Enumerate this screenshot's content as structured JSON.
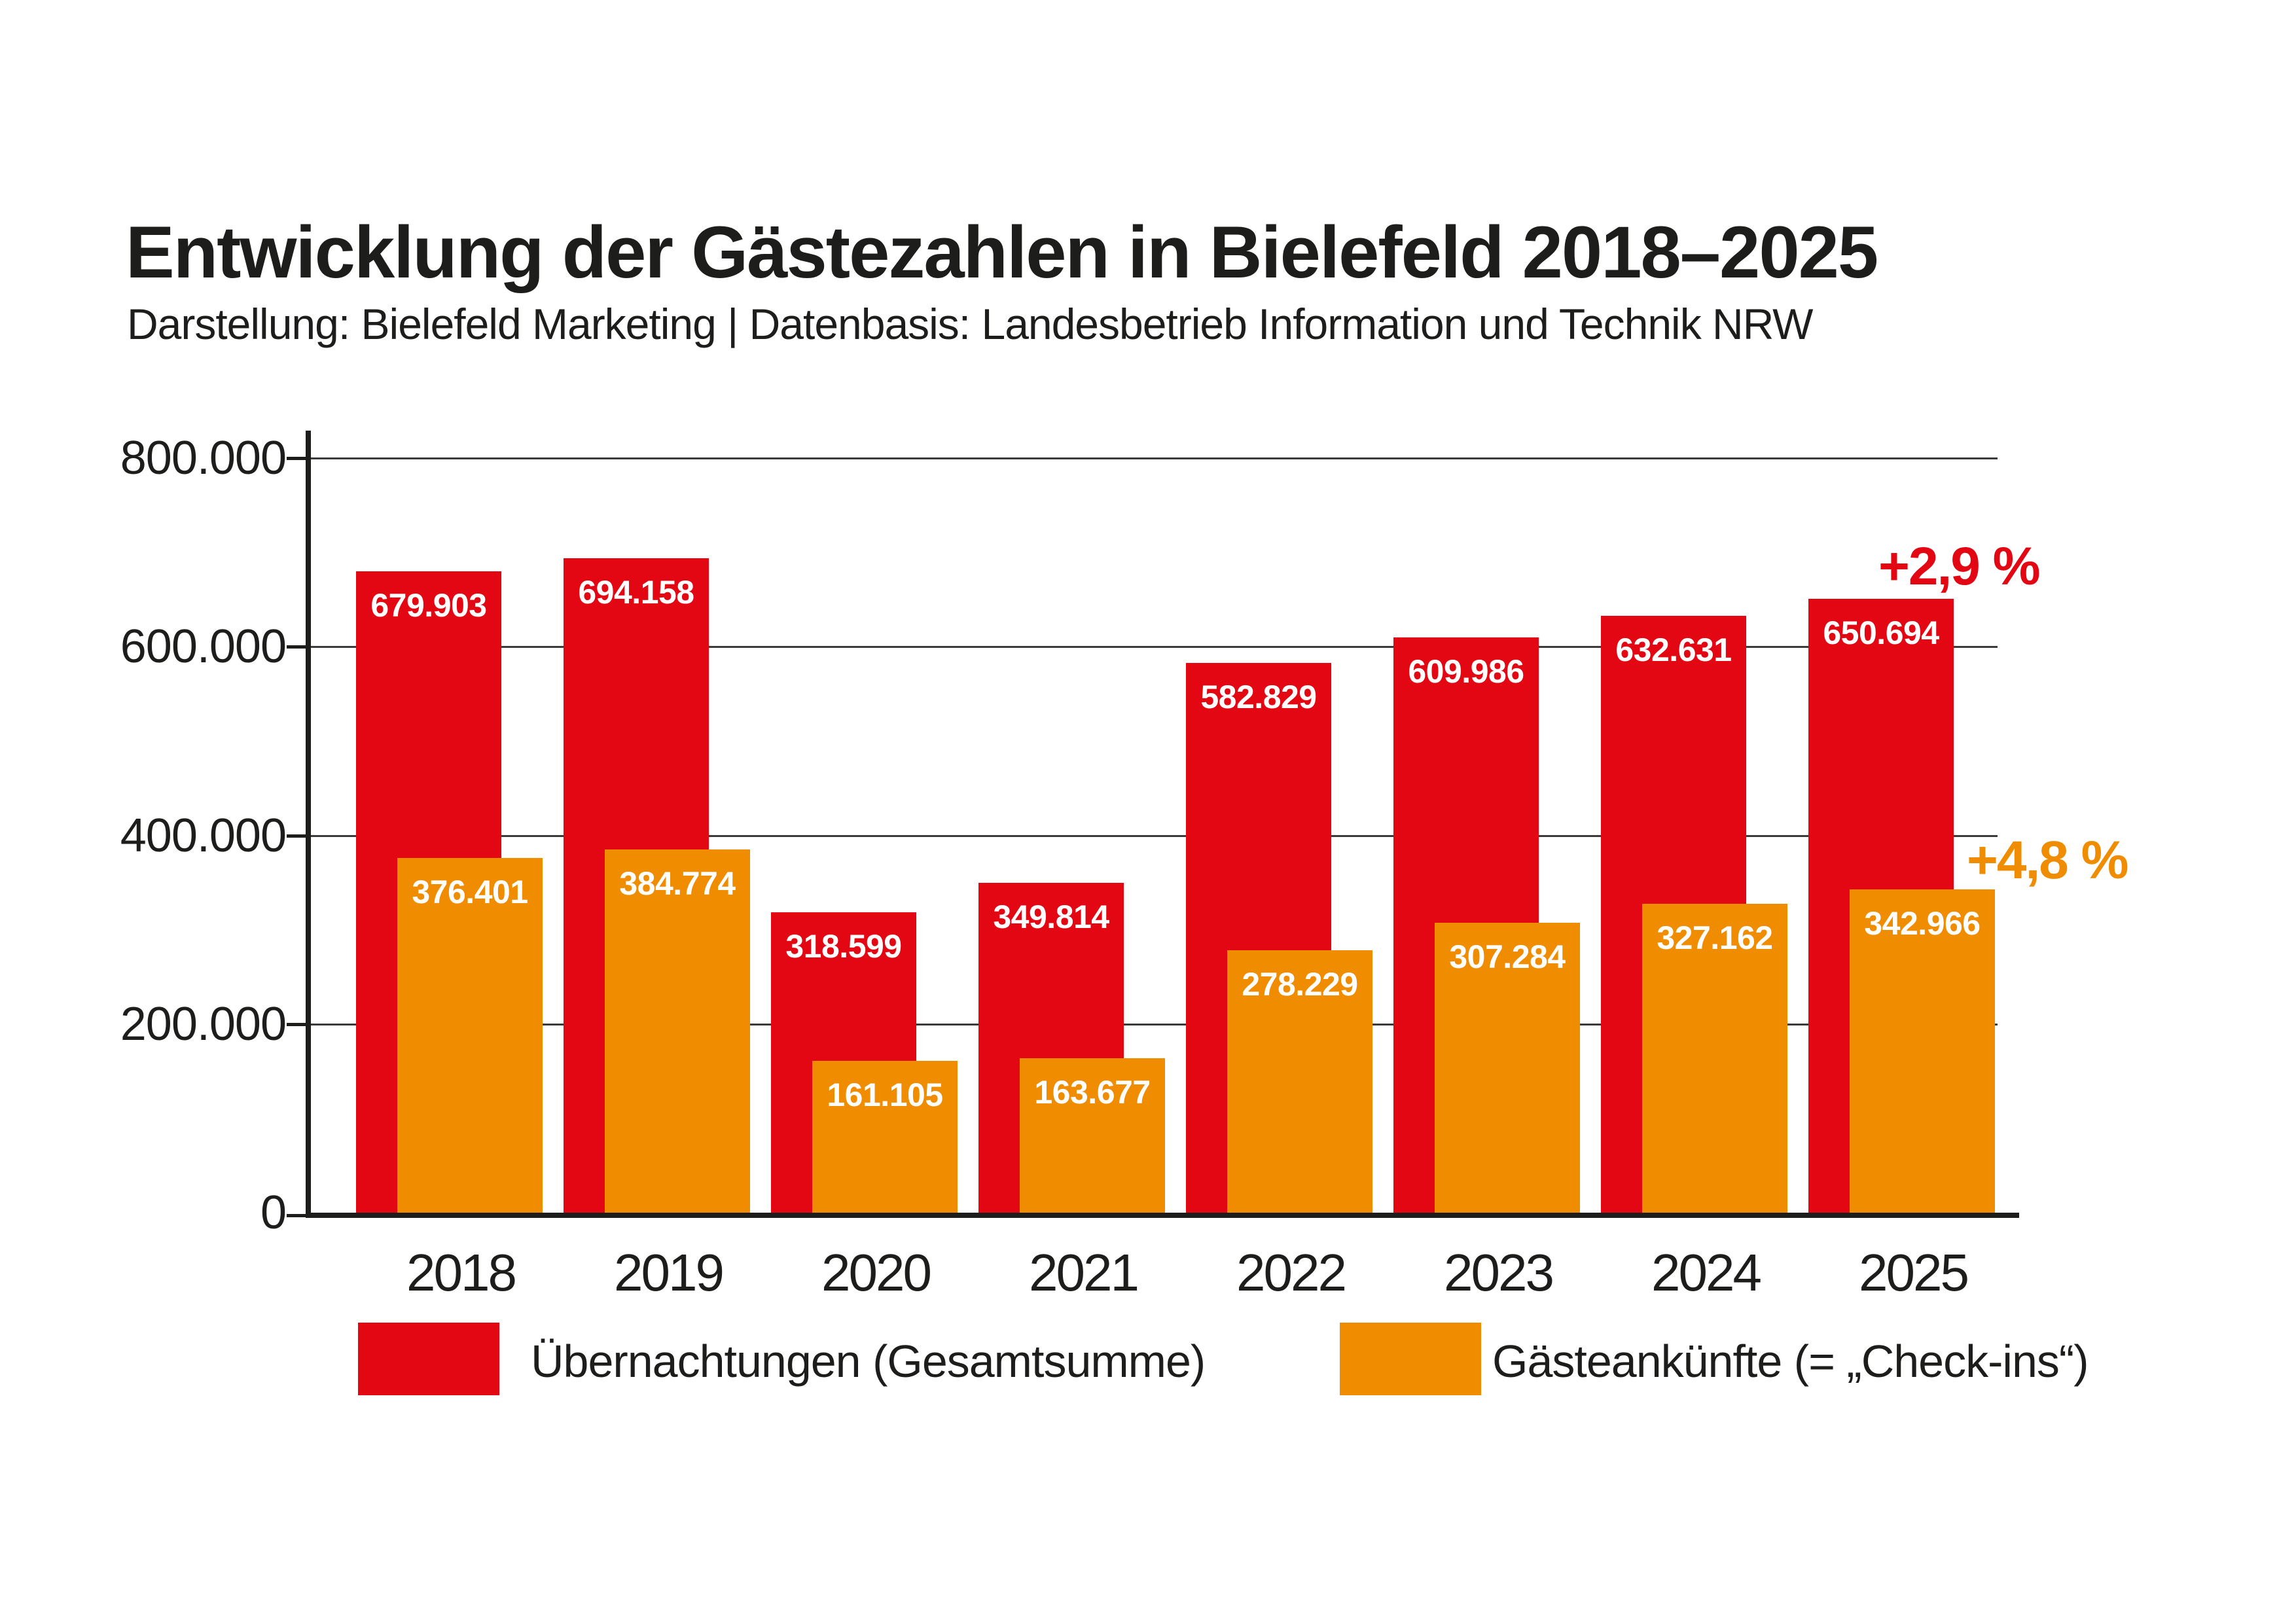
{
  "page": {
    "background": "#FFFFFF"
  },
  "header": {
    "title": "Entwicklung der Gästezahlen in Bielefeld 2018–2025",
    "subtitle": "Darstellung: Bielefeld Marketing | Datenbasis: Landesbetrieb Information und Technik NRW"
  },
  "colors": {
    "red": "#E30613",
    "orange": "#F08C00",
    "text": "#1D1D1B",
    "grid": "#3B3B3A",
    "bar_label": "#FFFFFF",
    "background": "#FFFFFF"
  },
  "y_axis": {
    "max": 800000,
    "ticks": [
      {
        "value": 800000,
        "label": "800.000"
      },
      {
        "value": 600000,
        "label": "600.000"
      },
      {
        "value": 400000,
        "label": "400.000"
      },
      {
        "value": 200000,
        "label": "200.000"
      },
      {
        "value": 0,
        "label": "0"
      }
    ]
  },
  "chart_data": {
    "type": "bar",
    "title": "Entwicklung der Gästezahlen in Bielefeld 2018–2025",
    "subtitle": "Darstellung: Bielefeld Marketing | Datenbasis: Landesbetrieb Information und Technik NRW",
    "categories": [
      "2018",
      "2019",
      "2020",
      "2021",
      "2022",
      "2023",
      "2024",
      "2025"
    ],
    "series": [
      {
        "name": "Übernachtungen (Gesamtsumme)",
        "color": "#E30613",
        "values": [
          679903,
          694158,
          318599,
          349814,
          582829,
          609986,
          632631,
          650694
        ],
        "labels": [
          "679.903",
          "694.158",
          "318.599",
          "349.814",
          "582.829",
          "609.986",
          "632.631",
          "650.694"
        ]
      },
      {
        "name": "Gästeankünfte (= „Check-ins“)",
        "color": "#F08C00",
        "values": [
          376401,
          384774,
          161105,
          163677,
          278229,
          307284,
          327162,
          342966
        ],
        "labels": [
          "376.401",
          "384.774",
          "161.105",
          "163.677",
          "278.229",
          "307.284",
          "327.162",
          "342.966"
        ]
      }
    ],
    "ylim": [
      0,
      800000
    ],
    "grid": true,
    "legend_position": "bottom",
    "annotations": [
      {
        "text": "+2,9 %",
        "applies_to": "Übernachtungen 2025",
        "color": "#E30613"
      },
      {
        "text": "+4,8 %",
        "applies_to": "Gästeankünfte 2025",
        "color": "#F08C00"
      }
    ]
  },
  "legend": {
    "items": [
      {
        "label": "Übernachtungen (Gesamtsumme)",
        "color": "#E30613"
      },
      {
        "label": "Gästeankünfte (= „Check-ins“)",
        "color": "#F08C00"
      }
    ]
  }
}
